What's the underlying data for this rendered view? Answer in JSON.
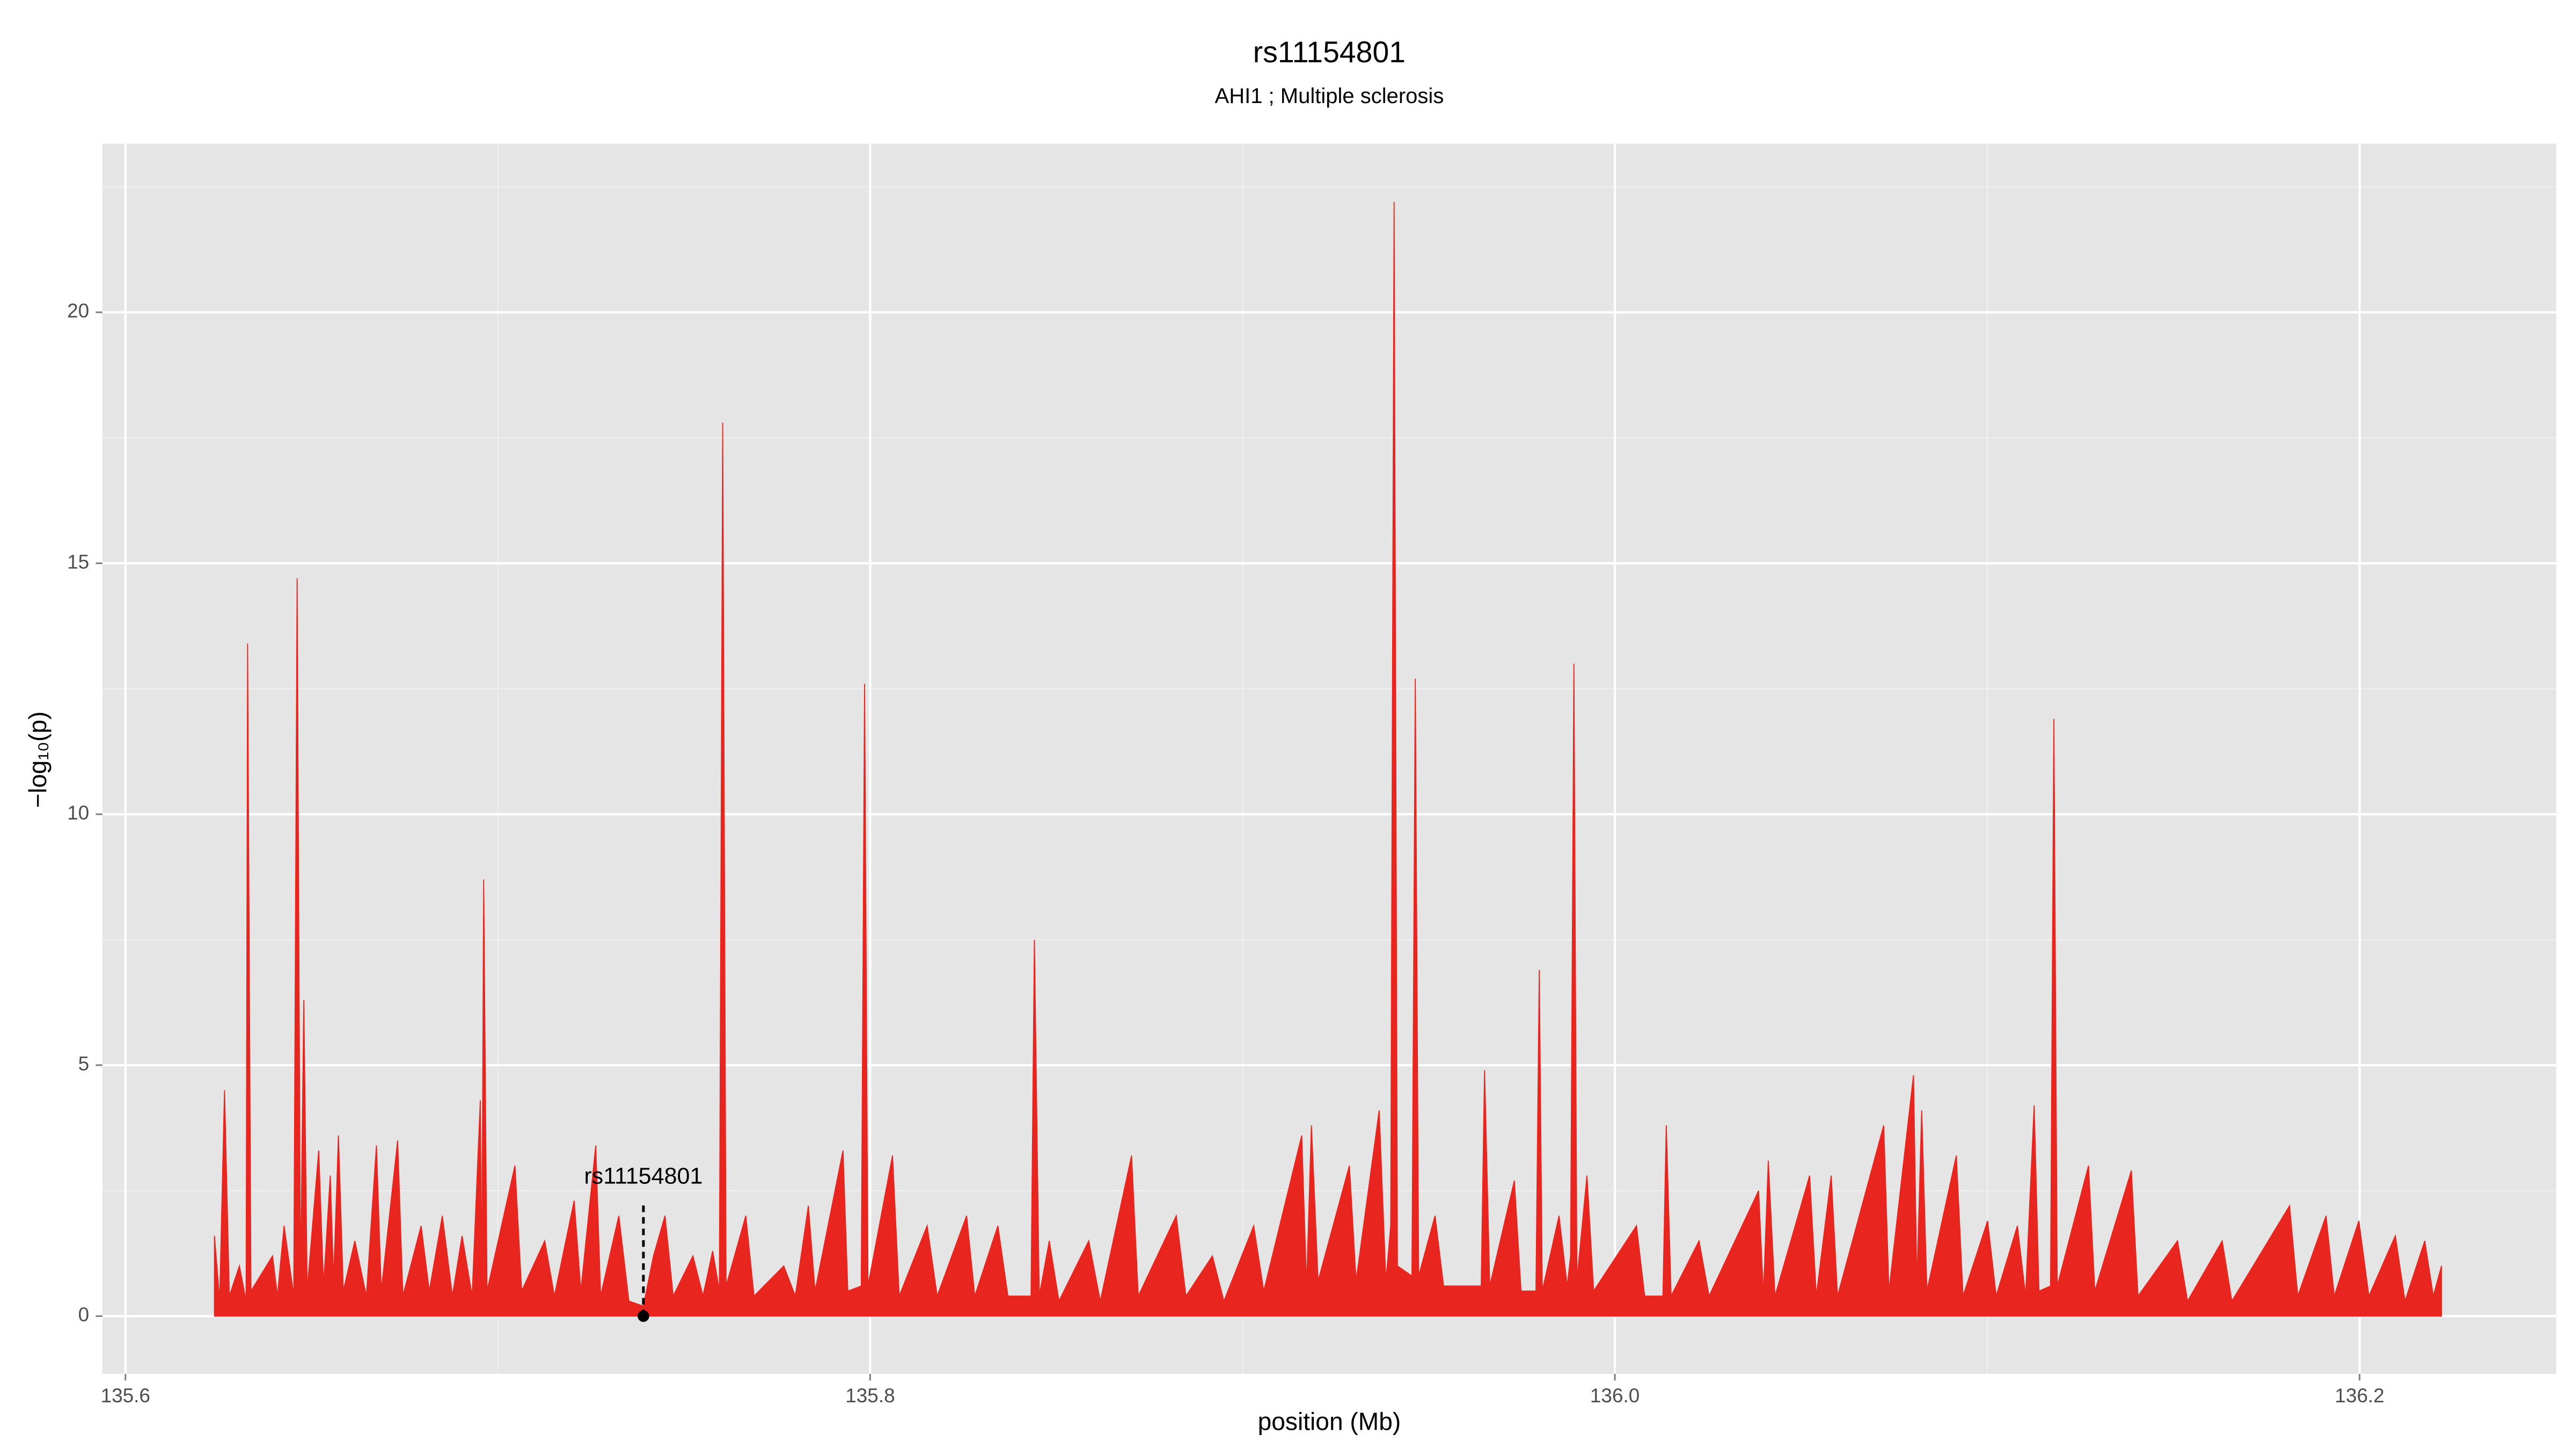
{
  "chart_data": {
    "type": "area",
    "title": "rs11154801",
    "subtitle": "AHI1 ; Multiple sclerosis",
    "xlabel": "position (Mb)",
    "ylabel": "−log₁₀(p)",
    "xlim": [
      135.5938,
      136.2528
    ],
    "ylim": [
      -1.15,
      23.36
    ],
    "xticks": [
      135.6,
      135.8,
      {
        "value": 136,
        "label": "136.0"
      },
      136.2
    ],
    "yticks": [
      0,
      5,
      10,
      15,
      20
    ],
    "xminorticks": [
      135.7,
      135.9,
      136.1
    ],
    "yminorticks": [
      2.5,
      7.5,
      12.5,
      17.5,
      22.5
    ],
    "grid": true,
    "background": "#e5e5e5",
    "x": [
      135.6239,
      135.6253,
      135.6266,
      135.6279,
      135.6306,
      135.6324,
      135.6328,
      135.6337,
      135.6395,
      135.6408,
      135.6426,
      135.6452,
      135.6461,
      135.647,
      135.6479,
      135.6488,
      135.6519,
      135.6532,
      135.655,
      135.6559,
      135.6572,
      135.6585,
      135.6616,
      135.6647,
      135.6674,
      135.6687,
      135.6731,
      135.6745,
      135.6794,
      135.6816,
      135.6851,
      135.6878,
      135.6904,
      135.6931,
      135.6953,
      135.6957,
      135.6962,
      135.6971,
      135.7046,
      135.7064,
      135.7126,
      135.7152,
      135.7205,
      135.7223,
      135.7263,
      135.7276,
      135.7325,
      135.7352,
      135.7391,
      135.7418,
      135.7449,
      135.7471,
      135.7524,
      135.7551,
      135.7577,
      135.7595,
      135.7604,
      135.7613,
      135.7666,
      135.7688,
      135.7768,
      135.7799,
      135.7834,
      135.7852,
      135.7927,
      135.794,
      135.7976,
      135.7985,
      135.7994,
      135.806,
      135.8078,
      135.8153,
      135.818,
      135.8259,
      135.8281,
      135.8343,
      135.837,
      135.8432,
      135.8441,
      135.8454,
      135.8481,
      135.8507,
      135.8587,
      135.8618,
      135.8702,
      135.872,
      135.8822,
      135.8848,
      135.8919,
      135.895,
      135.903,
      135.9057,
      135.9159,
      135.9172,
      135.9185,
      135.9203,
      135.9287,
      135.9305,
      135.9367,
      135.9385,
      135.9398,
      135.9407,
      135.9416,
      135.9455,
      135.9464,
      135.9473,
      135.9517,
      135.954,
      135.9641,
      135.965,
      135.9664,
      135.973,
      135.9748,
      135.9788,
      135.9797,
      135.9805,
      135.985,
      135.9872,
      135.9881,
      135.989,
      135.9898,
      135.9925,
      135.9943,
      136.0058,
      136.008,
      136.0129,
      136.0138,
      136.0151,
      136.0226,
      136.0253,
      136.0386,
      136.0399,
      136.0412,
      136.043,
      136.0523,
      136.0541,
      136.0581,
      136.0598,
      136.0722,
      136.0736,
      136.0802,
      136.0811,
      136.0824,
      136.0838,
      136.0917,
      136.0935,
      136.1001,
      136.1024,
      136.1081,
      136.1103,
      136.1126,
      136.1139,
      136.117,
      136.1179,
      136.1188,
      136.1272,
      136.1289,
      136.1387,
      136.1405,
      136.1511,
      136.1538,
      136.1631,
      136.1657,
      136.1812,
      136.1834,
      136.191,
      136.1932,
      136.1998,
      136.2025,
      136.2096,
      136.2122,
      136.2175,
      136.2198,
      136.222
    ],
    "series": [
      {
        "color": "#e8251f",
        "values": [
          1.6,
          0.3,
          4.5,
          0.4,
          1.0,
          0.3,
          13.4,
          0.5,
          1.2,
          0.4,
          1.8,
          0.4,
          14.7,
          0.6,
          6.3,
          0.5,
          3.3,
          0.6,
          2.8,
          0.7,
          3.6,
          0.5,
          1.5,
          0.4,
          3.4,
          0.5,
          3.5,
          0.4,
          1.8,
          0.5,
          2.0,
          0.4,
          1.6,
          0.4,
          4.3,
          0.5,
          8.7,
          0.5,
          3.0,
          0.5,
          1.5,
          0.4,
          2.3,
          0.5,
          3.4,
          0.4,
          2.0,
          0.3,
          0.2,
          1.2,
          2.0,
          0.4,
          1.2,
          0.4,
          1.3,
          0.5,
          17.8,
          0.6,
          2.0,
          0.4,
          1.0,
          0.4,
          2.2,
          0.5,
          3.3,
          0.5,
          0.6,
          12.6,
          0.6,
          3.2,
          0.4,
          1.8,
          0.4,
          2.0,
          0.4,
          1.8,
          0.4,
          0.4,
          7.5,
          0.4,
          1.5,
          0.3,
          1.5,
          0.3,
          3.2,
          0.4,
          2.0,
          0.4,
          1.2,
          0.3,
          1.8,
          0.5,
          3.6,
          0.6,
          3.8,
          0.7,
          3.0,
          0.7,
          4.1,
          0.7,
          1.8,
          22.2,
          1.0,
          0.8,
          12.7,
          0.8,
          2.0,
          0.6,
          0.6,
          4.9,
          0.6,
          2.7,
          0.5,
          0.5,
          6.9,
          0.5,
          2.0,
          0.6,
          1.2,
          13.0,
          0.7,
          2.8,
          0.5,
          1.8,
          0.4,
          0.4,
          3.8,
          0.4,
          1.5,
          0.4,
          2.5,
          0.4,
          3.1,
          0.4,
          2.8,
          0.4,
          2.8,
          0.4,
          3.8,
          0.5,
          4.8,
          0.6,
          4.1,
          0.5,
          3.2,
          0.4,
          1.9,
          0.4,
          1.8,
          0.4,
          4.2,
          0.5,
          0.6,
          11.9,
          0.6,
          3.0,
          0.5,
          2.9,
          0.4,
          1.5,
          0.3,
          1.5,
          0.3,
          2.2,
          0.4,
          2.0,
          0.4,
          1.9,
          0.4,
          1.6,
          0.3,
          1.5,
          0.4,
          1.0
        ]
      }
    ],
    "annotations": [
      {
        "text": "rs11154801",
        "x": 135.7391,
        "y": 0
      }
    ]
  }
}
